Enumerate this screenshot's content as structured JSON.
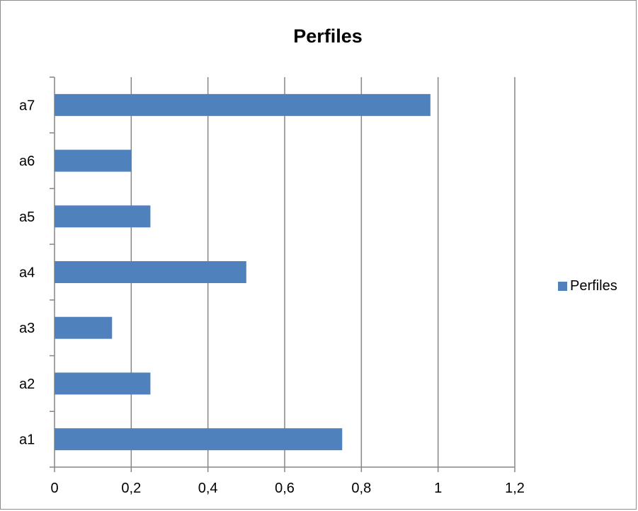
{
  "chart_data": {
    "type": "bar",
    "orientation": "horizontal",
    "title": "Perfiles",
    "categories": [
      "a1",
      "a2",
      "a3",
      "a4",
      "a5",
      "a6",
      "a7"
    ],
    "series": [
      {
        "name": "Perfiles",
        "values": [
          0.75,
          0.25,
          0.15,
          0.5,
          0.25,
          0.2,
          0.98
        ]
      }
    ],
    "xlim": [
      0,
      1.2
    ],
    "xticks": [
      "0",
      "0,2",
      "0,4",
      "0,6",
      "0,8",
      "1",
      "1,2"
    ],
    "grid": "vertical major gridlines",
    "legend_position": "right",
    "colors": {
      "bar": "#4f81bd",
      "grid": "#868686",
      "axis": "#868686"
    }
  }
}
